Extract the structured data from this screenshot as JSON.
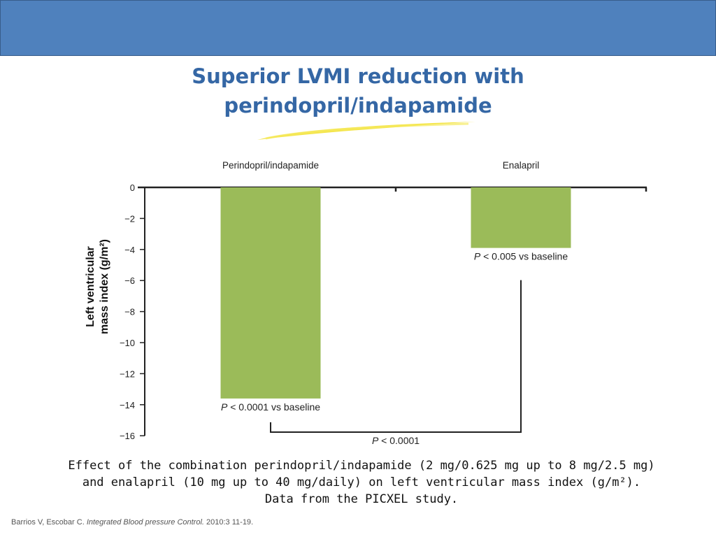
{
  "slide": {
    "title_lines": [
      "Superior LVMI  reduction with",
      "perindopril/indapamide"
    ],
    "caption_lines": [
      "Effect of the combination perindopril/indapamide (2 mg/0.625 mg up to 8 mg/2.5 mg)",
      "and enalapril (10 mg up to 40 mg/daily) on left ventricular mass index (g/m²).",
      "Data from the PICXEL study."
    ],
    "citation": {
      "authors": "Barrios V, Escobar C.",
      "journal": "Integrated Blood pressure Control.",
      "details": "2010:3 11-19."
    }
  },
  "colors": {
    "header_band": "#4f81bd",
    "title": "#3567a5",
    "bar": "#9bbb59",
    "underline": "#f2e12a"
  },
  "chart_data": {
    "type": "bar",
    "categories": [
      "Perindopril/indapamide",
      "Enalapril"
    ],
    "values": [
      -13.6,
      -3.9
    ],
    "bar_annotations": [
      "< 0.0001 vs baseline",
      "< 0.005 vs baseline"
    ],
    "comparison": {
      "label": "< 0.0001",
      "between": [
        0,
        1
      ]
    },
    "p_symbol": "P",
    "ylabel_lines": [
      "Left ventricular",
      "mass index (g/m²)"
    ],
    "yticks": [
      0,
      -2,
      -4,
      -6,
      -8,
      -10,
      -12,
      -14,
      -16
    ],
    "ylim": [
      -16,
      0
    ],
    "xaxis_position": "top",
    "grid": false
  }
}
